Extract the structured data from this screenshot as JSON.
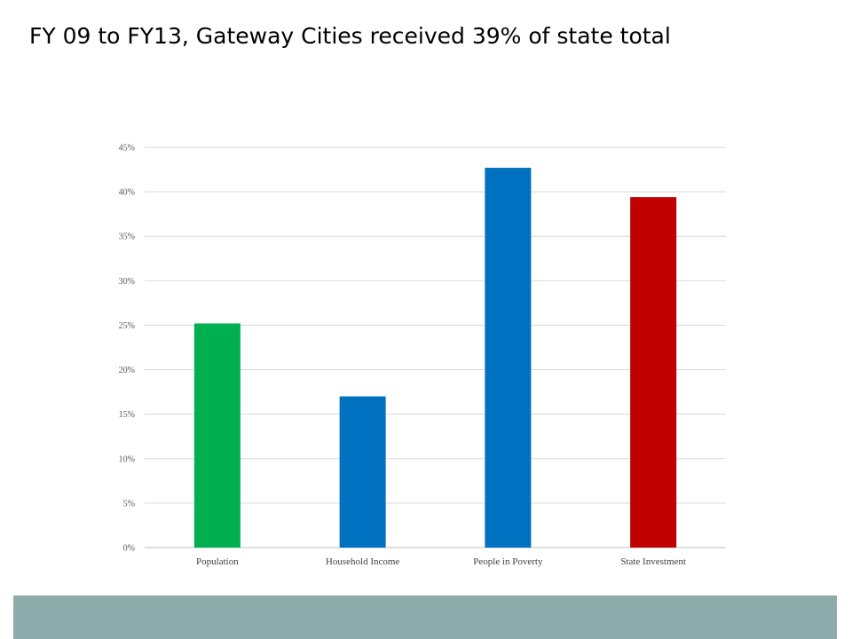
{
  "slide": {
    "title": "FY 09 to FY13, Gateway Cities received 39% of state total",
    "footer_color": "#8eabac"
  },
  "chart_data": {
    "type": "bar",
    "title": "",
    "xlabel": "",
    "ylabel": "",
    "categories": [
      "Population",
      "Household Income",
      "People in Poverty",
      "State Investment"
    ],
    "values": [
      25.2,
      17.0,
      42.7,
      39.4
    ],
    "colors": [
      "#00b050",
      "#0070c0",
      "#0070c0",
      "#c00000"
    ],
    "ylim": [
      0,
      45
    ],
    "ytick_step": 5,
    "ytick_suffix": "%",
    "gridlines": true,
    "legend": "none"
  }
}
